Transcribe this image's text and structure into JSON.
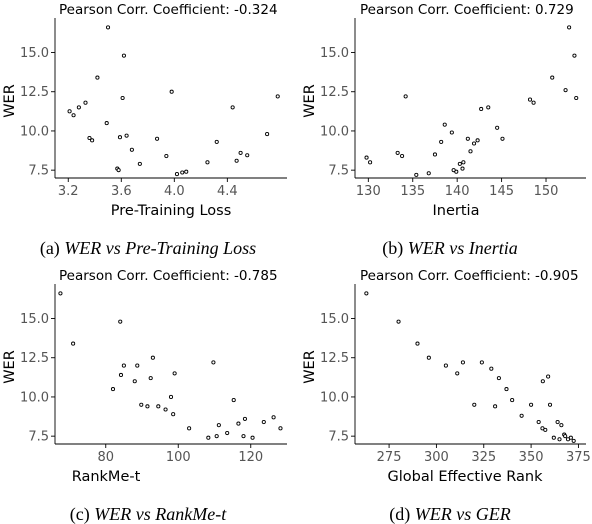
{
  "chart_data": [
    {
      "type": "scatter",
      "title": "Pearson Corr. Coefficient: -0.324",
      "xlabel": "Pre-Training Loss",
      "ylabel": "WER",
      "xlim": [
        3.1,
        4.85
      ],
      "ylim": [
        7.0,
        17.2
      ],
      "xticks": [
        3.2,
        3.6,
        4.0,
        4.4
      ],
      "xticklabels": [
        "3.2",
        "3.6",
        "4.0",
        "4.4"
      ],
      "yticks": [
        7.5,
        10.0,
        12.5,
        15.0
      ],
      "yticklabels": [
        "7.5",
        "10.0",
        "12.5",
        "15.0"
      ],
      "caption_label": "(a)",
      "caption_text": "WER vs Pre-Training Loss",
      "x": [
        3.5,
        3.21,
        3.24,
        3.28,
        3.33,
        3.38,
        3.36,
        3.42,
        3.49,
        3.62,
        3.61,
        3.64,
        3.57,
        3.58,
        3.68,
        3.74,
        3.87,
        3.98,
        4.02,
        4.06,
        4.09,
        4.25,
        4.32,
        4.44,
        4.47,
        4.5,
        4.55,
        4.7,
        4.78,
        3.59,
        3.94
      ],
      "y": [
        16.6,
        11.25,
        11.0,
        11.5,
        11.8,
        9.4,
        9.55,
        13.4,
        10.5,
        14.8,
        12.1,
        9.7,
        7.6,
        7.5,
        8.8,
        7.9,
        9.5,
        12.5,
        7.25,
        7.35,
        7.4,
        8.0,
        9.3,
        11.5,
        8.1,
        8.6,
        8.45,
        9.8,
        12.2,
        9.6,
        8.4
      ]
    },
    {
      "type": "scatter",
      "title": "Pearson Corr. Coefficient: 0.729",
      "xlabel": "Inertia",
      "ylabel": "WER",
      "xlim": [
        128.5,
        154.5
      ],
      "ylim": [
        7.0,
        17.2
      ],
      "xticks": [
        130,
        135,
        140,
        145,
        150
      ],
      "xticklabels": [
        "130",
        "135",
        "140",
        "145",
        "150"
      ],
      "yticks": [
        7.5,
        10.0,
        12.5,
        15.0
      ],
      "yticklabels": [
        "7.5",
        "10.0",
        "12.5",
        "15.0"
      ],
      "caption_label": "(b)",
      "caption_text": "WER vs Inertia",
      "x": [
        129.8,
        130.2,
        133.3,
        133.8,
        134.2,
        135.4,
        136.8,
        137.5,
        138.2,
        138.6,
        139.4,
        139.9,
        140.3,
        140.7,
        140.6,
        141.2,
        141.5,
        141.9,
        142.3,
        142.7,
        143.5,
        144.5,
        145.1,
        148.2,
        148.6,
        150.7,
        152.2,
        152.6,
        153.2,
        153.4,
        139.6
      ],
      "y": [
        8.3,
        8.0,
        8.6,
        8.4,
        12.2,
        7.2,
        7.3,
        8.5,
        9.3,
        10.4,
        9.9,
        7.4,
        7.9,
        8.0,
        7.6,
        9.5,
        8.7,
        9.2,
        9.4,
        11.4,
        11.5,
        10.2,
        9.5,
        12.0,
        11.8,
        13.4,
        12.6,
        16.6,
        14.8,
        12.1,
        7.5
      ]
    },
    {
      "type": "scatter",
      "title": "Pearson Corr. Coefficient: -0.785",
      "xlabel": "RankMe-t",
      "ylabel": "WER",
      "xlim": [
        66.0,
        130.0
      ],
      "ylim": [
        7.0,
        17.2
      ],
      "xticks": [
        80,
        100,
        120
      ],
      "xticklabels": [
        "80",
        "100",
        "120"
      ],
      "yticks": [
        7.5,
        10.0,
        12.5,
        15.0
      ],
      "yticklabels": [
        "7.5",
        "10.0",
        "12.5",
        "15.0"
      ],
      "caption_label": "(c)",
      "caption_text": "WER vs RankMe-t",
      "x": [
        67.5,
        71.0,
        82.0,
        84.0,
        84.2,
        85.0,
        88.0,
        88.7,
        89.8,
        91.5,
        92.4,
        93.0,
        94.5,
        96.5,
        98.0,
        99.0,
        98.6,
        103.0,
        108.3,
        109.7,
        110.6,
        111.2,
        113.5,
        115.3,
        116.6,
        118.0,
        118.4,
        120.5,
        123.6,
        126.3,
        128.2
      ],
      "y": [
        16.6,
        13.4,
        10.5,
        14.8,
        11.4,
        12.0,
        11.0,
        12.0,
        9.5,
        9.4,
        11.2,
        12.5,
        9.4,
        9.2,
        10.0,
        11.5,
        8.9,
        8.0,
        7.4,
        12.2,
        7.5,
        8.2,
        7.7,
        9.8,
        8.3,
        7.5,
        8.6,
        7.4,
        8.4,
        8.7,
        8.0
      ]
    },
    {
      "type": "scatter",
      "title": "Pearson Corr. Coefficient: -0.905",
      "xlabel": "Global Effective Rank",
      "ylabel": "WER",
      "xlim": [
        257.0,
        379.0
      ],
      "ylim": [
        7.0,
        17.2
      ],
      "xticks": [
        275,
        300,
        325,
        350,
        375
      ],
      "xticklabels": [
        "275",
        "300",
        "325",
        "350",
        "375"
      ],
      "yticks": [
        7.5,
        10.0,
        12.5,
        15.0
      ],
      "yticklabels": [
        "7.5",
        "10.0",
        "12.5",
        "15.0"
      ],
      "caption_label": "(d)",
      "caption_text": "WER vs GER",
      "x": [
        263.0,
        280.0,
        290.0,
        296.0,
        305.0,
        311.0,
        314.0,
        320.0,
        324.0,
        329.0,
        331.0,
        333.0,
        337.0,
        340.0,
        345.0,
        350.0,
        354.0,
        356.0,
        356.2,
        357.5,
        359.0,
        360.0,
        362.0,
        364.0,
        365.0,
        366.0,
        367.5,
        368.0,
        369.5,
        371.0,
        372.5
      ],
      "y": [
        16.6,
        14.8,
        13.4,
        12.5,
        12.0,
        11.5,
        12.2,
        9.5,
        12.2,
        11.8,
        9.4,
        11.2,
        10.5,
        9.8,
        8.8,
        9.5,
        8.4,
        8.0,
        11.0,
        7.9,
        11.3,
        9.5,
        7.4,
        8.4,
        7.3,
        8.2,
        7.6,
        7.5,
        7.3,
        7.4,
        7.2
      ]
    }
  ]
}
